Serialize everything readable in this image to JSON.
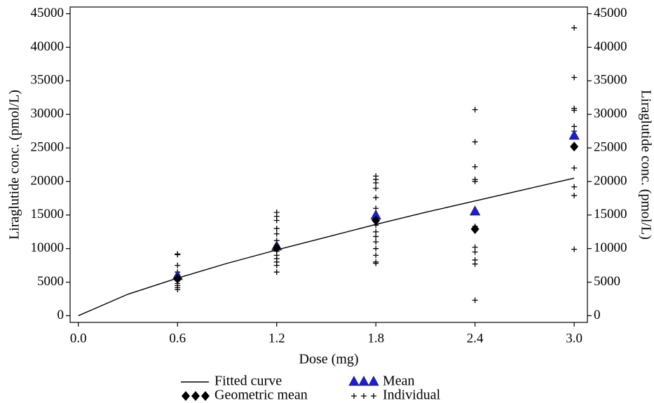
{
  "chart_data": {
    "type": "scatter",
    "x_label": "Dose (mg)",
    "y_label": "Liraglutide conc. (pmol/L)",
    "y2_label": "Liraglutide conc. (pmol/L)",
    "xlim": [
      -0.05,
      3.08
    ],
    "xticks": [
      {
        "value": 0,
        "label": "0.0"
      },
      0.6,
      1.2,
      1.8,
      2.4,
      {
        "value": 3,
        "label": "3.0"
      }
    ],
    "ylim": [
      -1000,
      46000
    ],
    "yticks": [
      0,
      5000,
      10000,
      15000,
      20000,
      25000,
      30000,
      35000,
      40000,
      45000
    ],
    "y2lim": [
      -1000,
      46000
    ],
    "y2ticks": [
      0,
      5000,
      10000,
      15000,
      20000,
      25000,
      30000,
      35000,
      40000,
      45000
    ],
    "series": [
      {
        "name": "Fitted curve",
        "marker": "line",
        "color": "#000000",
        "x": [
          0,
          0.3,
          0.6,
          0.9,
          1.2,
          1.5,
          1.8,
          2.1,
          2.4,
          2.7,
          3.0
        ],
        "values": [
          0,
          3200,
          5600,
          7800,
          9800,
          11700,
          13600,
          15400,
          17100,
          18800,
          20500
        ]
      },
      {
        "name": "Mean",
        "marker": "triangle",
        "color": "#1a1aee",
        "x": [
          0.6,
          1.2,
          1.8,
          2.4,
          3.0
        ],
        "values": [
          5900,
          10300,
          14900,
          15500,
          26800
        ]
      },
      {
        "name": "Geometric mean",
        "marker": "diamond",
        "color": "#000000",
        "x": [
          0.6,
          1.2,
          1.8,
          2.4,
          3.0
        ],
        "values": [
          5500,
          10100,
          14200,
          12900,
          25200
        ]
      },
      {
        "name": "Individual",
        "marker": "plus",
        "color": "#000000",
        "x": [
          0.6,
          0.6,
          0.6,
          0.6,
          0.6,
          0.6,
          0.6,
          0.6,
          0.6,
          0.6,
          1.2,
          1.2,
          1.2,
          1.2,
          1.2,
          1.2,
          1.2,
          1.2,
          1.2,
          1.2,
          1.2,
          1.2,
          1.2,
          1.2,
          1.8,
          1.8,
          1.8,
          1.8,
          1.8,
          1.8,
          1.8,
          1.8,
          1.8,
          1.8,
          1.8,
          1.8,
          1.8,
          1.8,
          1.8,
          1.8,
          2.4,
          2.4,
          2.4,
          2.4,
          2.4,
          2.4,
          2.4,
          2.4,
          2.4,
          2.4,
          2.4,
          2.4,
          3.0,
          3.0,
          3.0,
          3.0,
          3.0,
          3.0,
          3.0,
          3.0,
          3.0,
          3.0
        ],
        "values": [
          9200,
          9100,
          7500,
          6500,
          5600,
          5200,
          4800,
          4500,
          4200,
          3900,
          15400,
          14800,
          14200,
          13000,
          12200,
          11200,
          10500,
          10000,
          9600,
          9000,
          8500,
          8000,
          7500,
          6500,
          20800,
          20300,
          19800,
          19000,
          17600,
          16000,
          15000,
          14500,
          13500,
          12500,
          11800,
          11000,
          10000,
          9000,
          8000,
          7800,
          30700,
          25900,
          22200,
          20300,
          20000,
          15600,
          13300,
          10200,
          9500,
          8300,
          7700,
          2300,
          42900,
          35500,
          30900,
          30600,
          28200,
          27500,
          22000,
          19200,
          17900,
          9900
        ]
      }
    ]
  }
}
